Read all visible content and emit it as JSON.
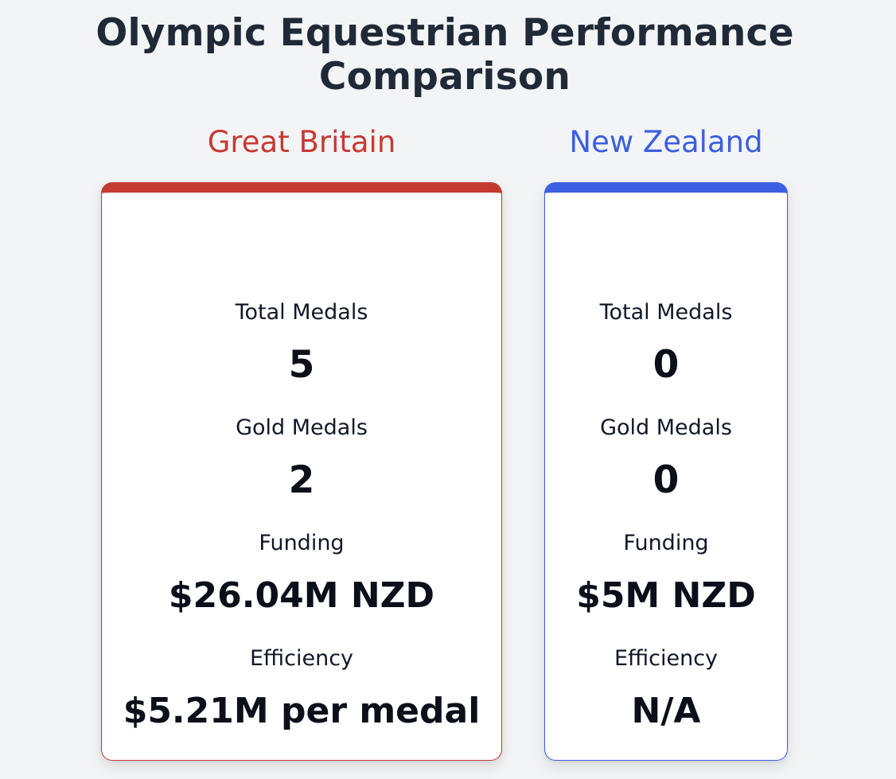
{
  "page": {
    "title": "Olympic Equestrian Performance Comparison"
  },
  "colors": {
    "background": "#f3f4f6",
    "great_britain_accent": "#c53a30",
    "new_zealand_accent": "#3b5fe0",
    "title": "#1f2937"
  },
  "countries": [
    {
      "name": "Great Britain",
      "stats": {
        "total_medals_label": "Total Medals",
        "total_medals": "5",
        "gold_medals_label": "Gold Medals",
        "gold_medals": "2",
        "funding_label": "Funding",
        "funding": "$26.04M NZD",
        "efficiency_label": "Efficiency",
        "efficiency": "$5.21M per medal"
      }
    },
    {
      "name": "New Zealand",
      "stats": {
        "total_medals_label": "Total Medals",
        "total_medals": "0",
        "gold_medals_label": "Gold Medals",
        "gold_medals": "0",
        "funding_label": "Funding",
        "funding": "$5M NZD",
        "efficiency_label": "Efficiency",
        "efficiency": "N/A"
      }
    }
  ]
}
